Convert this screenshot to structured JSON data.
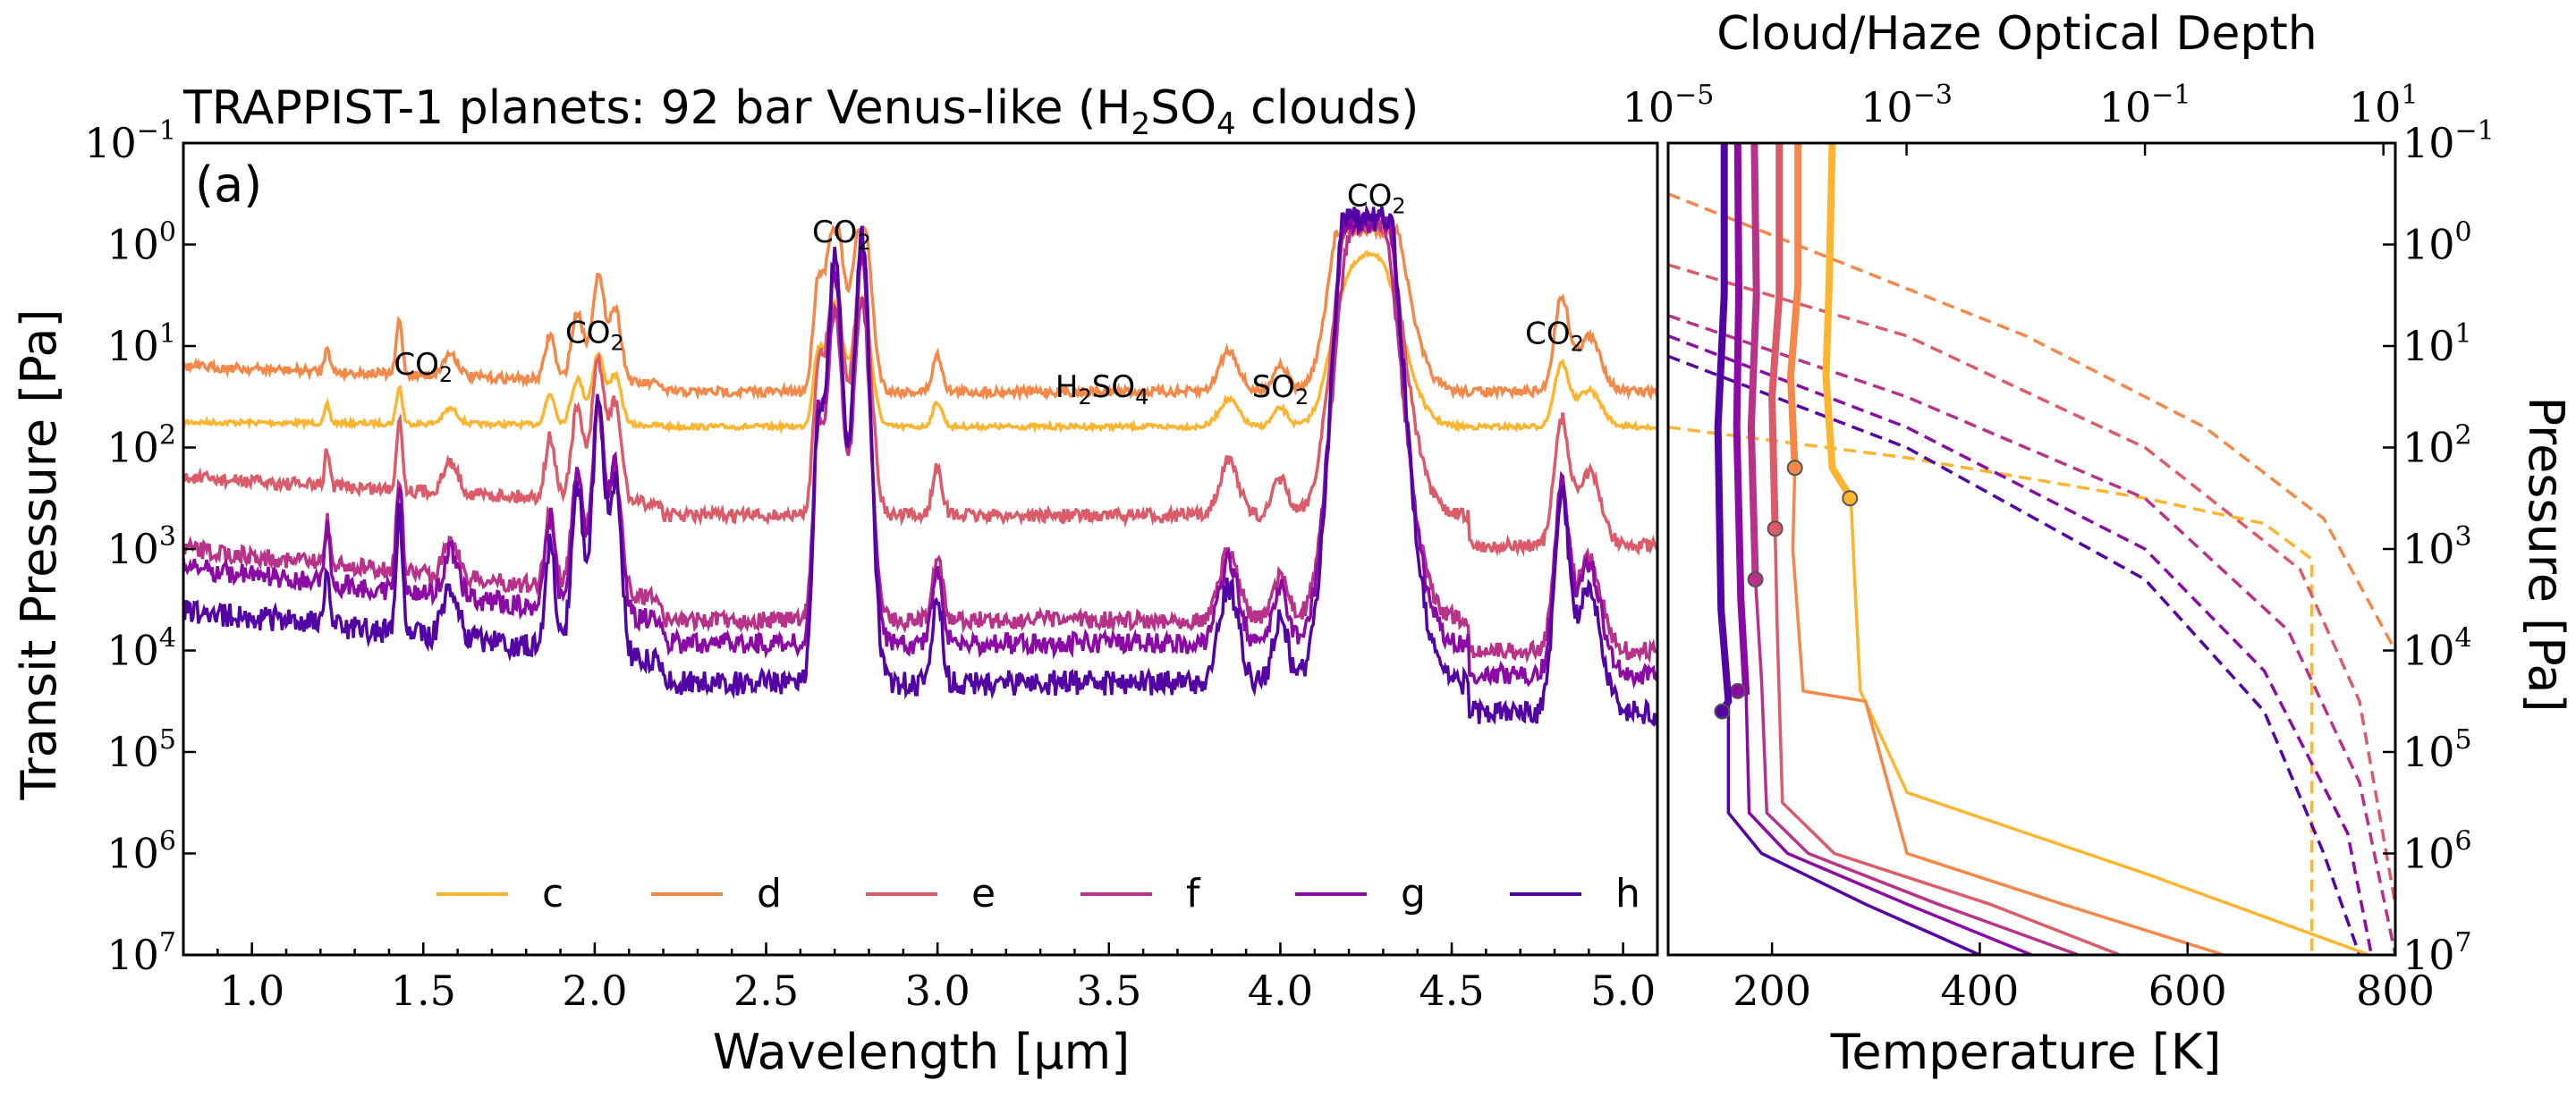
{
  "chart_data": [
    {
      "type": "line",
      "panel": "a",
      "title_prefix": "TRAPPIST-1 planets: 92 bar Venus-like (H",
      "title_sub1": "2",
      "title_mid": "SO",
      "title_sub2": "4",
      "title_suffix": " clouds)",
      "panel_label": "(a)",
      "xlabel": "Wavelength [μm]",
      "ylabel": "Transit Pressure [Pa]",
      "xlim": [
        0.8,
        5.1
      ],
      "ylim_log10": [
        7,
        -1
      ],
      "x_ticks": [
        1.0,
        1.5,
        2.0,
        2.5,
        3.0,
        3.5,
        4.0,
        4.5,
        5.0
      ],
      "x_tick_labels": [
        "1.0",
        "1.5",
        "2.0",
        "2.5",
        "3.0",
        "3.5",
        "4.0",
        "4.5",
        "5.0"
      ],
      "y_ticks_log10": [
        -1,
        0,
        1,
        2,
        3,
        4,
        5,
        6,
        7
      ],
      "y_tick_base": "10",
      "y_tick_exponents": [
        "−1",
        "0",
        "1",
        "2",
        "3",
        "4",
        "5",
        "6",
        "7"
      ],
      "annotations": [
        {
          "base": "CO",
          "sub": "2",
          "mid": "",
          "sub2": "",
          "x": 1.5,
          "y_log10": 1.28
        },
        {
          "base": "CO",
          "sub": "2",
          "mid": "",
          "sub2": "",
          "x": 2.0,
          "y_log10": 0.97
        },
        {
          "base": "CO",
          "sub": "2",
          "mid": "",
          "sub2": "",
          "x": 2.72,
          "y_log10": -0.02
        },
        {
          "base": "H",
          "sub": "2",
          "mid": "SO",
          "sub2": "4",
          "x": 3.48,
          "y_log10": 1.5
        },
        {
          "base": "SO",
          "sub": "2",
          "mid": "",
          "sub2": "",
          "x": 4.0,
          "y_log10": 1.5
        },
        {
          "base": "CO",
          "sub": "2",
          "mid": "",
          "sub2": "",
          "x": 4.28,
          "y_log10": -0.38
        },
        {
          "base": "CO",
          "sub": "2",
          "mid": "",
          "sub2": "",
          "x": 4.8,
          "y_log10": 0.98
        }
      ],
      "series": [
        {
          "name": "c",
          "color": "#fdb42f",
          "base_log10": 1.75,
          "slope": 0.045
        },
        {
          "name": "d",
          "color": "#f48849",
          "base_log10": 1.2,
          "slope": 0.25
        },
        {
          "name": "e",
          "color": "#db5c68",
          "base_log10": 2.3,
          "slope": 0.37
        },
        {
          "name": "f",
          "color": "#b83289",
          "base_log10": 3.0,
          "slope": 0.7
        },
        {
          "name": "g",
          "color": "#8b0aa5",
          "base_log10": 3.18,
          "slope": 0.75
        },
        {
          "name": "h",
          "color": "#5302a3",
          "base_log10": 3.6,
          "slope": 0.72
        }
      ],
      "legend_position": "bottom"
    },
    {
      "type": "line",
      "panel": "b",
      "top_xlabel": "Cloud/Haze Optical Depth",
      "xlabel": "Temperature [K]",
      "ylabel": "Pressure [Pa]",
      "xlim": [
        100,
        800
      ],
      "top_xlim_log10": [
        -5,
        1.1
      ],
      "top_x_ticks_log10": [
        -5,
        -3,
        -1,
        1
      ],
      "top_x_tick_exponents": [
        "−5",
        "−3",
        "−1",
        "1"
      ],
      "x_ticks": [
        200,
        400,
        600,
        800
      ],
      "x_tick_labels": [
        "200",
        "400",
        "600",
        "800"
      ],
      "ylim_log10": [
        7,
        -1
      ],
      "temperature_profiles": [
        {
          "name": "c",
          "color": "#fdb42f",
          "points": [
            [
              775,
              7
            ],
            [
              560,
              6.2
            ],
            [
              330,
              5.4
            ],
            [
              285,
              4.4
            ],
            [
              280,
              3.4
            ],
            [
              276,
              2.5
            ],
            [
              258,
              2.2
            ],
            [
              252,
              1.3
            ],
            [
              255,
              0.4
            ],
            [
              258,
              -1
            ]
          ],
          "cloud_base": [
            275,
            2.5
          ]
        },
        {
          "name": "d",
          "color": "#f48849",
          "points": [
            [
              635,
              7
            ],
            [
              480,
              6.5
            ],
            [
              330,
              6.0
            ],
            [
              290,
              4.5
            ],
            [
              230,
              4.4
            ],
            [
              220,
              3.0
            ],
            [
              222,
              2.2
            ],
            [
              218,
              1.3
            ],
            [
              225,
              0.4
            ],
            [
              225,
              -1
            ]
          ],
          "cloud_base": [
            222,
            2.2
          ]
        },
        {
          "name": "e",
          "color": "#db5c68",
          "points": [
            [
              535,
              7
            ],
            [
              410,
              6.5
            ],
            [
              260,
              6.0
            ],
            [
              210,
              5.5
            ],
            [
              205,
              3.8
            ],
            [
              203,
              2.8
            ],
            [
              200,
              1.5
            ],
            [
              207,
              0.5
            ],
            [
              207,
              -1
            ]
          ],
          "cloud_base": [
            203,
            2.8
          ]
        },
        {
          "name": "f",
          "color": "#b83289",
          "points": [
            [
              495,
              7
            ],
            [
              360,
              6.5
            ],
            [
              235,
              6.0
            ],
            [
              195,
              5.6
            ],
            [
              190,
              4.3
            ],
            [
              184,
              3.3
            ],
            [
              180,
              1.8
            ],
            [
              185,
              0.5
            ],
            [
              183,
              -1
            ]
          ],
          "cloud_base": [
            184,
            3.3
          ]
        },
        {
          "name": "g",
          "color": "#8b0aa5",
          "points": [
            [
              450,
              7
            ],
            [
              330,
              6.5
            ],
            [
              215,
              6.0
            ],
            [
              178,
              5.6
            ],
            [
              175,
              4.4
            ],
            [
              170,
              3.5
            ],
            [
              166,
              1.8
            ],
            [
              168,
              0.5
            ],
            [
              167,
              -1
            ]
          ],
          "cloud_base": [
            167,
            4.4
          ]
        },
        {
          "name": "h",
          "color": "#5302a3",
          "points": [
            [
              400,
              7
            ],
            [
              290,
              6.5
            ],
            [
              190,
              6.0
            ],
            [
              158,
              5.6
            ],
            [
              158,
              4.5
            ],
            [
              151,
              3.6
            ],
            [
              148,
              1.8
            ],
            [
              154,
              0.5
            ],
            [
              154,
              -1
            ]
          ],
          "cloud_base": [
            152,
            4.6
          ]
        }
      ],
      "optical_depth_profiles": [
        {
          "name": "c",
          "color": "#fdb42f",
          "points": [
            [
              -5,
              1.8
            ],
            [
              -3,
              2.1
            ],
            [
              -1,
              2.5
            ],
            [
              0,
              2.75
            ],
            [
              0.4,
              3.1
            ],
            [
              0.4,
              7
            ]
          ]
        },
        {
          "name": "d",
          "color": "#f48849",
          "points": [
            [
              -5,
              -0.5
            ],
            [
              -3.5,
              0.2
            ],
            [
              -2,
              0.9
            ],
            [
              -0.5,
              1.8
            ],
            [
              0.5,
              2.7
            ],
            [
              1.1,
              4.0
            ]
          ]
        },
        {
          "name": "e",
          "color": "#db5c68",
          "points": [
            [
              -5,
              0.2
            ],
            [
              -3,
              0.9
            ],
            [
              -1,
              2.0
            ],
            [
              0.3,
              3.2
            ],
            [
              0.8,
              4.5
            ],
            [
              1.1,
              6.5
            ]
          ]
        },
        {
          "name": "f",
          "color": "#b83289",
          "points": [
            [
              -5,
              0.7
            ],
            [
              -3,
              1.5
            ],
            [
              -1,
              2.5
            ],
            [
              0.2,
              3.8
            ],
            [
              0.8,
              5.3
            ],
            [
              1.1,
              7
            ]
          ]
        },
        {
          "name": "g",
          "color": "#8b0aa5",
          "points": [
            [
              -5,
              0.9
            ],
            [
              -3,
              1.8
            ],
            [
              -1,
              3.0
            ],
            [
              0,
              4.2
            ],
            [
              0.7,
              5.8
            ],
            [
              0.9,
              7
            ]
          ]
        },
        {
          "name": "h",
          "color": "#5302a3",
          "points": [
            [
              -5,
              1.1
            ],
            [
              -3,
              2.0
            ],
            [
              -1,
              3.3
            ],
            [
              0,
              4.6
            ],
            [
              0.5,
              6.0
            ],
            [
              0.8,
              7
            ]
          ]
        }
      ]
    }
  ]
}
